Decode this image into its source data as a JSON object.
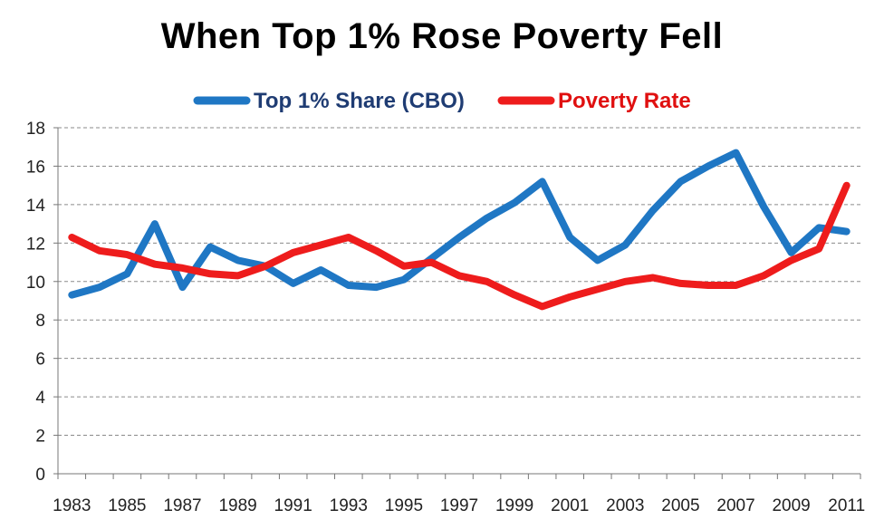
{
  "chart_data": {
    "type": "line",
    "title": "When Top 1% Rose Poverty Fell",
    "xlabel": "",
    "ylabel": "",
    "ylim": [
      0,
      18
    ],
    "y_ticks": [
      "0",
      "2",
      "4",
      "6",
      "8",
      "10",
      "12",
      "14",
      "16",
      "18"
    ],
    "x_tick_labels": [
      "1983",
      "1985",
      "1987",
      "1989",
      "1991",
      "1993",
      "1995",
      "1997",
      "1999",
      "2001",
      "2003",
      "2005",
      "2007",
      "2009",
      "2011"
    ],
    "grid": true,
    "legend_position": "top-center",
    "x": [
      1983,
      1984,
      1985,
      1986,
      1987,
      1988,
      1989,
      1990,
      1991,
      1992,
      1993,
      1994,
      1995,
      1996,
      1997,
      1998,
      1999,
      2000,
      2001,
      2002,
      2003,
      2004,
      2005,
      2006,
      2007,
      2008,
      2009,
      2010,
      2011
    ],
    "series": [
      {
        "name": "Top 1% Share (CBO)",
        "color": "#1F77C4",
        "values": [
          9.3,
          9.7,
          10.4,
          13.0,
          9.7,
          11.8,
          11.1,
          10.8,
          9.9,
          10.6,
          9.8,
          9.7,
          10.1,
          11.2,
          12.3,
          13.3,
          14.1,
          15.2,
          12.3,
          11.1,
          11.9,
          13.7,
          15.2,
          16.0,
          16.7,
          13.9,
          11.5,
          12.8,
          12.6
        ]
      },
      {
        "name": "Poverty Rate",
        "color": "#EE1C1C",
        "values": [
          12.3,
          11.6,
          11.4,
          10.9,
          10.7,
          10.4,
          10.3,
          10.8,
          11.5,
          11.9,
          12.3,
          11.6,
          10.8,
          11.0,
          10.3,
          10.0,
          9.3,
          8.7,
          9.2,
          9.6,
          10.0,
          10.2,
          9.9,
          9.8,
          9.8,
          10.3,
          11.1,
          11.7,
          15.0
        ]
      }
    ]
  }
}
